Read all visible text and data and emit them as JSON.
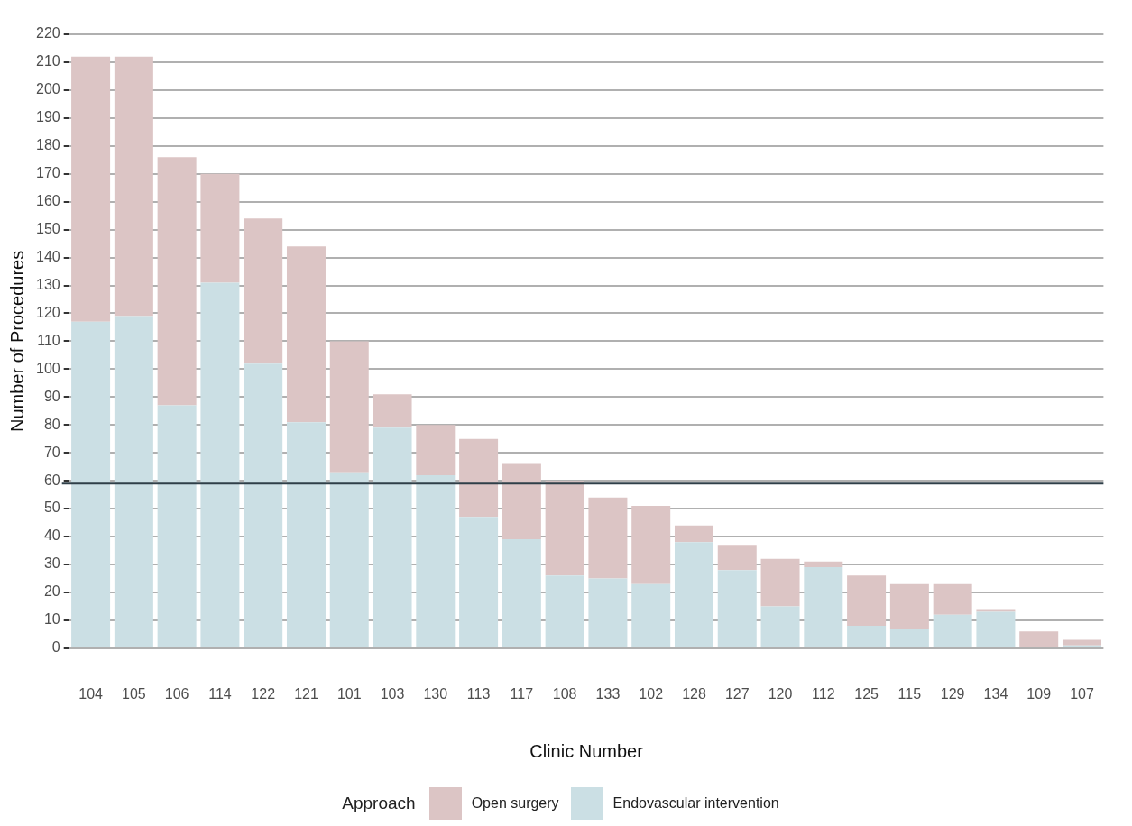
{
  "chart_data": {
    "type": "bar",
    "stacked": true,
    "xlabel": "Clinic Number",
    "ylabel": "Number of Procedures",
    "legend_title": "Approach",
    "categories": [
      "104",
      "105",
      "106",
      "114",
      "122",
      "121",
      "101",
      "103",
      "130",
      "113",
      "117",
      "108",
      "133",
      "102",
      "128",
      "127",
      "120",
      "112",
      "125",
      "115",
      "129",
      "134",
      "109",
      "107"
    ],
    "series": [
      {
        "name": "Endovascular intervention",
        "color": "#cbdfe4",
        "values": [
          117,
          119,
          87,
          131,
          102,
          81,
          63,
          79,
          62,
          47,
          39,
          26,
          25,
          23,
          38,
          28,
          15,
          29,
          8,
          7,
          12,
          13,
          0,
          1
        ]
      },
      {
        "name": "Open surgery",
        "color": "#dcc5c5",
        "values": [
          95,
          93,
          89,
          39,
          52,
          63,
          47,
          12,
          18,
          28,
          27,
          34,
          29,
          28,
          6,
          9,
          17,
          2,
          18,
          16,
          11,
          1,
          6,
          2
        ]
      }
    ],
    "ylim": [
      0,
      220
    ],
    "yticks": [
      0,
      10,
      20,
      30,
      40,
      50,
      60,
      70,
      80,
      90,
      100,
      110,
      120,
      130,
      140,
      150,
      160,
      170,
      180,
      190,
      200,
      210,
      220
    ],
    "grid": "y",
    "legend": "bottom",
    "ref_lines": [
      {
        "axis": "y",
        "value": 59,
        "color": "#2f3f48"
      }
    ]
  }
}
